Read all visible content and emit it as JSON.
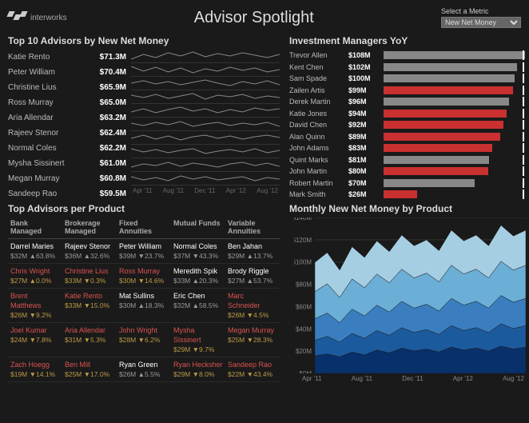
{
  "header": {
    "logo_text": "interworks",
    "title": "Advisor Spotlight",
    "metric_label": "Select a Metric",
    "metric_value": "New Net Money"
  },
  "top10": {
    "title": "Top 10 Advisors by New Net Money",
    "rows": [
      {
        "name": "Katie Rento",
        "val": "$71.3M"
      },
      {
        "name": "Peter William",
        "val": "$70.4M"
      },
      {
        "name": "Christine Lius",
        "val": "$65.9M"
      },
      {
        "name": "Ross Murray",
        "val": "$65.0M"
      },
      {
        "name": "Aria Allendar",
        "val": "$63.2M"
      },
      {
        "name": "Rajeev Stenor",
        "val": "$62.4M"
      },
      {
        "name": "Normal Coles",
        "val": "$62.2M"
      },
      {
        "name": "Mysha Sissinert",
        "val": "$61.0M"
      },
      {
        "name": "Megan Murray",
        "val": "$60.8M"
      },
      {
        "name": "Sandeep Rao",
        "val": "$59.5M"
      }
    ],
    "sparks": [
      "0,12 15,6 30,10 45,4 60,8 75,3 90,9 105,5 120,8 135,4 150,7 165,10 180,6",
      "0,4 15,10 30,5 45,11 60,6 75,12 90,7 105,10 120,5 135,9 150,6 165,11 180,8",
      "0,8 15,5 30,9 45,6 60,10 75,7 90,4 105,8 120,11 135,6 150,9 165,5 180,10",
      "0,6 15,9 30,5 45,10 60,7 75,4 90,11 105,6 120,8 135,5 150,10 165,7 180,9",
      "0,10 15,6 30,11 45,7 60,4 75,9 90,6 105,11 120,7 135,10 150,5 165,8 180,6",
      "0,7 15,10 30,6 45,9 60,5 75,11 90,8 105,6 120,10 135,7 150,9 165,6 180,11",
      "0,9 15,5 30,10 45,6 60,11 75,7 90,5 105,9 120,6 135,10 150,7 165,5 180,8",
      "0,5 15,9 30,6 45,10 60,7 75,5 90,11 105,8 120,6 135,9 150,5 165,10 180,7",
      "0,11 15,7 30,9 45,5 60,10 75,6 90,8 105,11 120,7 135,5 150,9 165,6 180,10",
      "0,6 15,10 30,7 45,11 60,5 75,9 90,6 105,10 120,8 135,6 150,11 165,7 180,9"
    ],
    "xaxis": [
      "Apr '11",
      "Aug '11",
      "Dec '11",
      "Apr '12",
      "Aug '12"
    ]
  },
  "im": {
    "title": "Investment Managers YoY",
    "max": 110,
    "rows": [
      {
        "name": "Trevor Allen",
        "val": "$108M",
        "n": 108,
        "red": false
      },
      {
        "name": "Kent Chen",
        "val": "$102M",
        "n": 102,
        "red": false
      },
      {
        "name": "Sam Spade",
        "val": "$100M",
        "n": 100,
        "red": false
      },
      {
        "name": "Zailen Artis",
        "val": "$99M",
        "n": 99,
        "red": true
      },
      {
        "name": "Derek Martin",
        "val": "$96M",
        "n": 96,
        "red": false
      },
      {
        "name": "Katie Jones",
        "val": "$94M",
        "n": 94,
        "red": true
      },
      {
        "name": "David Chen",
        "val": "$92M",
        "n": 92,
        "red": true
      },
      {
        "name": "Alan Quinn",
        "val": "$89M",
        "n": 89,
        "red": true
      },
      {
        "name": "John Adams",
        "val": "$83M",
        "n": 83,
        "red": true
      },
      {
        "name": "Quint Marks",
        "val": "$81M",
        "n": 81,
        "red": false
      },
      {
        "name": "John Martin",
        "val": "$80M",
        "n": 80,
        "red": true
      },
      {
        "name": "Robert Martin",
        "val": "$70M",
        "n": 70,
        "red": false
      },
      {
        "name": "Mark Smith",
        "val": "$26M",
        "n": 26,
        "red": true
      }
    ]
  },
  "prod": {
    "title": "Top Advisors per Product",
    "cols": [
      "Bank Managed",
      "Brokerage Managed",
      "Fixed Annuities",
      "Mutual Funds",
      "Variable Annuities"
    ],
    "rows": [
      [
        {
          "name": "Darrel Maries",
          "stat": "$32M ▲63.8%",
          "neg": false
        },
        {
          "name": "Rajeev Stenor",
          "stat": "$36M ▲32.6%",
          "neg": false
        },
        {
          "name": "Peter William",
          "stat": "$39M ▼23.7%",
          "neg": false
        },
        {
          "name": "Normal Coles",
          "stat": "$37M ▼43.3%",
          "neg": false
        },
        {
          "name": "Ben Jahan",
          "stat": "$29M ▲13.7%",
          "neg": false
        }
      ],
      [
        {
          "name": "Chris Wright",
          "stat": "$27M ▲0.0%",
          "neg": true
        },
        {
          "name": "Christine Lius",
          "stat": "$33M ▼0.3%",
          "neg": true
        },
        {
          "name": "Ross Murray",
          "stat": "$30M ▼14.6%",
          "neg": true
        },
        {
          "name": "Meredith Spik",
          "stat": "$33M ▲20.3%",
          "neg": false
        },
        {
          "name": "Brody Riggle",
          "stat": "$27M ▲53.7%",
          "neg": false
        }
      ],
      [
        {
          "name": "Brent Matthews",
          "stat": "$26M ▼9.2%",
          "neg": true
        },
        {
          "name": "Katie Rento",
          "stat": "$33M ▼15.0%",
          "neg": true
        },
        {
          "name": "Mat Sullins",
          "stat": "$30M ▲18.3%",
          "neg": false
        },
        {
          "name": "Eric Chen",
          "stat": "$32M ▲58.5%",
          "neg": false
        },
        {
          "name": "Marc Schneider",
          "stat": "$26M ▼4.5%",
          "neg": true
        }
      ],
      [
        {
          "name": "Joel Kumar",
          "stat": "$24M ▼7.8%",
          "neg": true
        },
        {
          "name": "Aria Allendar",
          "stat": "$31M ▼5.3%",
          "neg": true
        },
        {
          "name": "John Wright",
          "stat": "$28M ▼6.2%",
          "neg": true
        },
        {
          "name": "Mysha Sissinert",
          "stat": "$29M ▼9.7%",
          "neg": true
        },
        {
          "name": "Megan Murray",
          "stat": "$25M ▼28.3%",
          "neg": true
        }
      ],
      [
        {
          "name": "Zach Hoegg",
          "stat": "$19M ▼14.1%",
          "neg": true
        },
        {
          "name": "Ben Mill",
          "stat": "$25M ▼17.0%",
          "neg": true
        },
        {
          "name": "Ryan Green",
          "stat": "$26M ▲5.5%",
          "neg": false
        },
        {
          "name": "Ryan Hecksher",
          "stat": "$29M ▼8.0%",
          "neg": true
        },
        {
          "name": "Sandeep Rao",
          "stat": "$22M ▼43.4%",
          "neg": true
        }
      ]
    ]
  },
  "area": {
    "title": "Monthly New Net Money by Product",
    "yticks": [
      "$140M",
      "$120M",
      "$100M",
      "$80M",
      "$60M",
      "$40M",
      "$20M",
      "$0M"
    ],
    "xaxis": [
      "Apr '11",
      "Aug '11",
      "Dec '11",
      "Apr '12",
      "Aug '12"
    ],
    "colors": [
      "#08306b",
      "#1c5a9e",
      "#3a7ebf",
      "#6baed6",
      "#a6cee3"
    ],
    "series": [
      [
        18,
        20,
        17,
        22,
        19,
        24,
        21,
        26,
        23,
        25,
        22,
        27,
        24,
        26,
        23,
        28,
        25,
        27
      ],
      [
        16,
        18,
        15,
        19,
        17,
        20,
        18,
        21,
        19,
        20,
        18,
        22,
        20,
        21,
        19,
        23,
        21,
        22
      ],
      [
        22,
        24,
        20,
        25,
        23,
        26,
        24,
        27,
        25,
        26,
        24,
        28,
        26,
        27,
        25,
        29,
        27,
        28
      ],
      [
        28,
        30,
        26,
        31,
        29,
        32,
        30,
        33,
        31,
        32,
        30,
        34,
        32,
        33,
        31,
        35,
        33,
        34
      ],
      [
        30,
        32,
        28,
        33,
        31,
        34,
        32,
        35,
        33,
        34,
        32,
        36,
        34,
        35,
        33,
        37,
        35,
        36
      ]
    ],
    "ymax": 160
  }
}
